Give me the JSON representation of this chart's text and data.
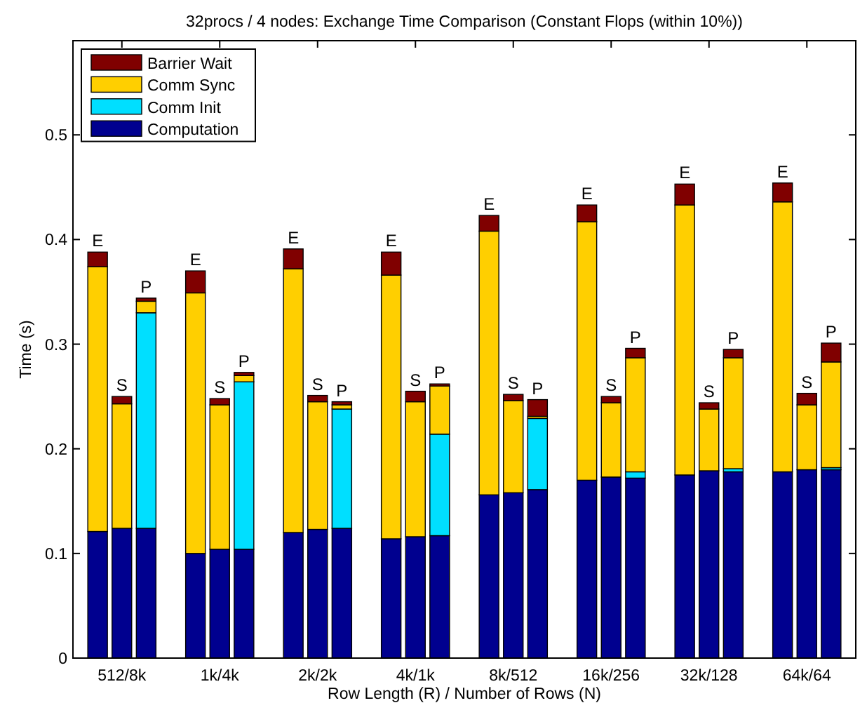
{
  "chart_data": {
    "type": "bar",
    "title": "32procs / 4 nodes: Exchange Time Comparison (Constant Flops (within 10%))",
    "xlabel": "Row Length (R) / Number of Rows (N)",
    "ylabel": "Time (s)",
    "categories": [
      null,
      "512/8k",
      null,
      null,
      "1k/4k",
      null,
      null,
      "2k/2k",
      null,
      null,
      "4k/1k",
      null,
      null,
      "8k/512",
      null,
      null,
      "16k/256",
      null,
      null,
      "32k/128",
      null,
      null,
      "64k/64",
      null
    ],
    "stacked": true,
    "series": [
      {
        "name": "Computation",
        "color": "#00008f",
        "values": [
          0.121,
          0.124,
          0.124,
          0.1,
          0.104,
          0.104,
          0.12,
          0.123,
          0.124,
          0.114,
          0.116,
          0.117,
          0.156,
          0.158,
          0.161,
          0.17,
          0.173,
          0.172,
          0.175,
          0.179,
          0.178,
          0.178,
          0.18,
          0.18
        ]
      },
      {
        "name": "Comm Init",
        "color": "#00dfff",
        "values": [
          0,
          0,
          0.206,
          0,
          0,
          0.16,
          0,
          0,
          0.114,
          0,
          0,
          0.097,
          0,
          0,
          0.068,
          0,
          0,
          0.006,
          0,
          0,
          0.003,
          0,
          0,
          0.002
        ]
      },
      {
        "name": "Comm Sync",
        "color": "#ffcf00",
        "values": [
          0.253,
          0.119,
          0.011,
          0.249,
          0.138,
          0.006,
          0.252,
          0.122,
          0.004,
          0.252,
          0.129,
          0.046,
          0.252,
          0.088,
          0.002,
          0.247,
          0.071,
          0.109,
          0.258,
          0.059,
          0.106,
          0.258,
          0.062,
          0.101
        ]
      },
      {
        "name": "Barrier Wait",
        "color": "#800000",
        "values": [
          0.014,
          0.007,
          0.003,
          0.021,
          0.006,
          0.003,
          0.019,
          0.006,
          0.003,
          0.022,
          0.01,
          0.002,
          0.015,
          0.006,
          0.016,
          0.016,
          0.006,
          0.009,
          0.02,
          0.006,
          0.008,
          0.018,
          0.011,
          0.018
        ],
        "value_labels": [
          "E",
          "S",
          "P",
          "E",
          "S",
          "P",
          "E",
          "S",
          "P",
          "E",
          "S",
          "P",
          "E",
          "S",
          "P",
          "E",
          "S",
          "P",
          "E",
          "S",
          "P",
          "E",
          "S",
          "P"
        ]
      }
    ],
    "ylim": [
      0,
      0.59
    ],
    "yticks": [
      0,
      0.1,
      0.2,
      0.3,
      0.4,
      0.5
    ],
    "legend": "top left"
  }
}
